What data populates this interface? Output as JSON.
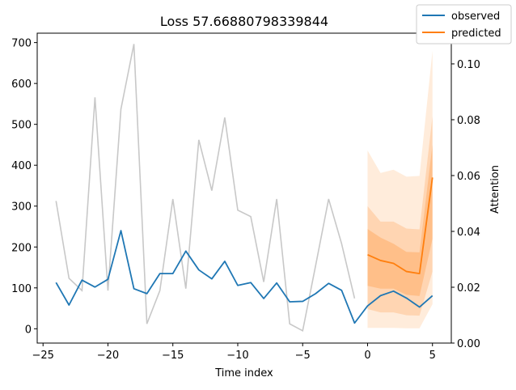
{
  "chart_data": {
    "type": "line",
    "title": "Loss 57.66880798339844",
    "xlabel": "Time index",
    "ylabel_right": "Attention",
    "xlim": [
      -25.45,
      6.45
    ],
    "ylim": [
      -35,
      723
    ],
    "ylim_right": [
      0,
      0.111
    ],
    "x_ticks": [
      -25,
      -20,
      -15,
      -10,
      -5,
      0,
      5
    ],
    "x_tick_labels": [
      "−25",
      "−20",
      "−15",
      "−10",
      "−5",
      "0",
      "5"
    ],
    "y_ticks": [
      0,
      100,
      200,
      300,
      400,
      500,
      600,
      700
    ],
    "y_tick_labels": [
      "0",
      "100",
      "200",
      "300",
      "400",
      "500",
      "600",
      "700"
    ],
    "y2_ticks": [
      0.0,
      0.02,
      0.04,
      0.06,
      0.08,
      0.1
    ],
    "y2_tick_labels": [
      "0.00",
      "0.02",
      "0.04",
      "0.06",
      "0.08",
      "0.10"
    ],
    "legend": {
      "position": "top-right",
      "entries": [
        "observed",
        "predicted"
      ]
    },
    "colors": {
      "observed": "#1f77b4",
      "predicted": "#ff7f0e",
      "attention": "#c8c8c8",
      "band": "#ff7f0e"
    },
    "attention": {
      "x": [
        -24,
        -23,
        -22,
        -21,
        -20,
        -19,
        -18,
        -17,
        -16,
        -15,
        -14,
        -13,
        -12,
        -11,
        -10,
        -9,
        -8,
        -7,
        -6,
        -5,
        -4,
        -3,
        -2,
        -1
      ],
      "values": [
        0.0509,
        0.0232,
        0.0188,
        0.088,
        0.0188,
        0.0838,
        0.1071,
        0.0069,
        0.0188,
        0.0516,
        0.0195,
        0.0728,
        0.0546,
        0.0808,
        0.0476,
        0.0453,
        0.0219,
        0.0516,
        0.0069,
        0.0044,
        0.0278,
        0.0516,
        0.0356,
        0.016
      ]
    },
    "series": [
      {
        "name": "observed",
        "x": [
          -24,
          -23,
          -22,
          -21,
          -20,
          -19,
          -18,
          -17,
          -16,
          -15,
          -14,
          -13,
          -12,
          -11,
          -10,
          -9,
          -8,
          -7,
          -6,
          -5,
          -4,
          -3,
          -2,
          -1,
          0,
          1,
          2,
          3,
          4,
          5
        ],
        "values": [
          113,
          58,
          119,
          102,
          121,
          240,
          98,
          86,
          135,
          135,
          190,
          144,
          122,
          165,
          106,
          113,
          74,
          112,
          66,
          67,
          86,
          111,
          94,
          14,
          56,
          81,
          92,
          75,
          53,
          81
        ]
      },
      {
        "name": "predicted",
        "x": [
          0,
          1,
          2,
          3,
          4,
          5
        ],
        "values": [
          181,
          167,
          160,
          140,
          135,
          370
        ]
      }
    ],
    "quantile_bands": [
      {
        "opacity": 0.15,
        "lower": [
          2,
          2,
          2,
          1,
          1,
          60
        ],
        "upper": [
          436,
          381,
          389,
          372,
          374,
          680
        ]
      },
      {
        "opacity": 0.2,
        "lower": [
          48,
          40,
          40,
          33,
          32,
          140
        ],
        "upper": [
          300,
          262,
          262,
          245,
          243,
          520
        ]
      },
      {
        "opacity": 0.25,
        "lower": [
          105,
          98,
          98,
          83,
          80,
          220
        ],
        "upper": [
          244,
          223,
          208,
          188,
          187,
          450
        ]
      }
    ]
  }
}
